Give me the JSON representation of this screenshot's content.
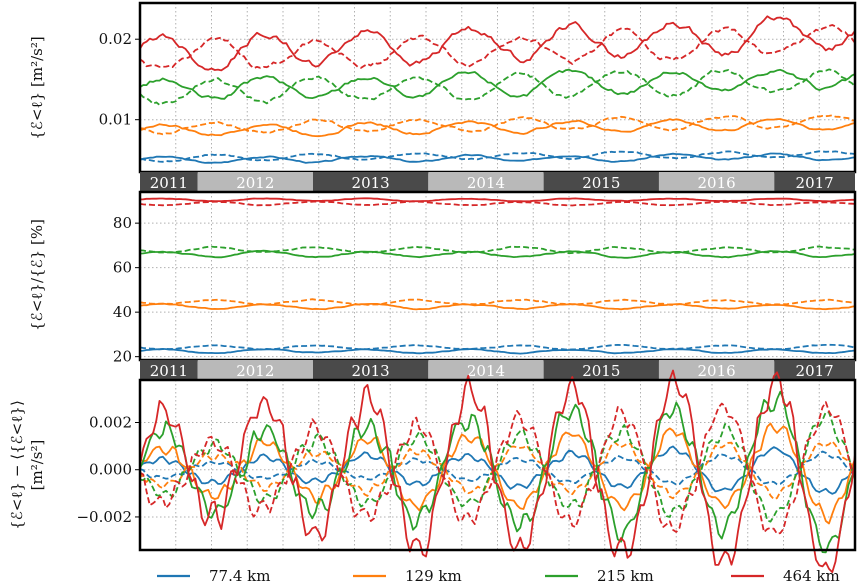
{
  "colors": {
    "77.4 km": "#1f77b4",
    "129 km": "#ff7f0e",
    "215 km": "#2ca02c",
    "464 km": "#d62728",
    "year_dark": "#4a4a4a",
    "year_light": "#b9b9b9",
    "grid": "#b0b0b0"
  },
  "chart_data": [
    {
      "type": "line",
      "panel": "top",
      "ylabel": "{ℰ<ℓ} [m²/s²]",
      "ylim": [
        0.0035,
        0.0245
      ],
      "yticks": [
        0.01,
        0.02
      ],
      "ytick_labels": [
        "0.01",
        "0.02"
      ],
      "grid": true,
      "series": [
        {
          "name": "77.4 km",
          "style": "solid",
          "mean": 0.0052,
          "amp": 0.0004
        },
        {
          "name": "77.4 km",
          "style": "dashed",
          "mean": 0.0055,
          "amp": 0.0004
        },
        {
          "name": "129 km",
          "style": "solid",
          "mean": 0.0091,
          "amp": 0.0007
        },
        {
          "name": "129 km",
          "style": "dashed",
          "mean": 0.0094,
          "amp": 0.0007
        },
        {
          "name": "215 km",
          "style": "solid",
          "mean": 0.0144,
          "amp": 0.0013
        },
        {
          "name": "215 km",
          "style": "dashed",
          "mean": 0.0142,
          "amp": 0.0014
        },
        {
          "name": "464 km",
          "style": "solid",
          "mean": 0.0195,
          "amp": 0.002
        },
        {
          "name": "464 km",
          "style": "dashed",
          "mean": 0.0188,
          "amp": 0.0017
        }
      ]
    },
    {
      "type": "line",
      "panel": "middle",
      "ylabel": "{ℰ<ℓ}/{ℰ} [%]",
      "ylim": [
        18.5,
        94
      ],
      "yticks": [
        20,
        40,
        60,
        80
      ],
      "ytick_labels": [
        "20",
        "40",
        "60",
        "80"
      ],
      "grid": true,
      "series": [
        {
          "name": "77.4 km",
          "style": "solid",
          "mean": 22.5,
          "amp": 0.8
        },
        {
          "name": "77.4 km",
          "style": "dashed",
          "mean": 24.2,
          "amp": 0.8
        },
        {
          "name": "129 km",
          "style": "solid",
          "mean": 42.5,
          "amp": 1.0
        },
        {
          "name": "129 km",
          "style": "dashed",
          "mean": 44.5,
          "amp": 1.0
        },
        {
          "name": "215 km",
          "style": "solid",
          "mean": 66.0,
          "amp": 1.2
        },
        {
          "name": "215 km",
          "style": "dashed",
          "mean": 68.0,
          "amp": 1.2
        },
        {
          "name": "464 km",
          "style": "solid",
          "mean": 90.5,
          "amp": 0.6
        },
        {
          "name": "464 km",
          "style": "dashed",
          "mean": 88.8,
          "amp": 0.7
        }
      ]
    },
    {
      "type": "line",
      "panel": "bottom",
      "ylabel_line1": "{ℰ<ℓ} − ⟨{ℰ<ℓ}⟩",
      "ylabel_line2": "[m²/s²]",
      "ylim": [
        -0.0034,
        0.0038
      ],
      "yticks": [
        -0.002,
        0.0,
        0.002
      ],
      "ytick_labels": [
        "−0.002",
        "0.000",
        "0.002"
      ],
      "grid": true,
      "series": [
        {
          "name": "77.4 km",
          "style": "solid",
          "amp": 0.0006
        },
        {
          "name": "77.4 km",
          "style": "dashed",
          "amp": 0.0004
        },
        {
          "name": "129 km",
          "style": "solid",
          "amp": 0.0012
        },
        {
          "name": "129 km",
          "style": "dashed",
          "amp": 0.0008
        },
        {
          "name": "215 km",
          "style": "solid",
          "amp": 0.002
        },
        {
          "name": "215 km",
          "style": "dashed",
          "amp": 0.0013
        },
        {
          "name": "464 km",
          "style": "solid",
          "amp": 0.0028
        },
        {
          "name": "464 km",
          "style": "dashed",
          "amp": 0.0018
        }
      ]
    }
  ],
  "years": [
    "2011",
    "2012",
    "2013",
    "2014",
    "2015",
    "2016",
    "2017"
  ],
  "legend": [
    "77.4 km",
    "129 km",
    "215 km",
    "464 km"
  ]
}
